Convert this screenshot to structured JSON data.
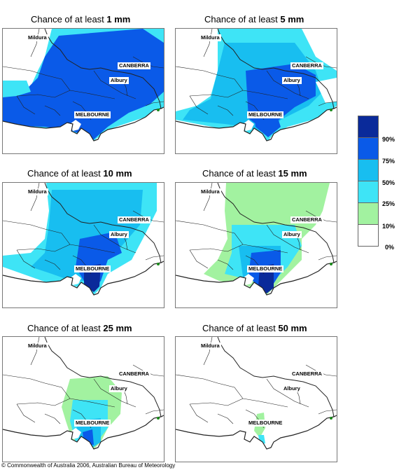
{
  "panels": [
    {
      "title_prefix": "Chance of at least ",
      "amount": "1 mm"
    },
    {
      "title_prefix": "Chance of at least ",
      "amount": "5 mm"
    },
    {
      "title_prefix": "Chance of at least ",
      "amount": "10 mm"
    },
    {
      "title_prefix": "Chance of at least ",
      "amount": "15 mm"
    },
    {
      "title_prefix": "Chance of at least ",
      "amount": "25 mm"
    },
    {
      "title_prefix": "Chance of at least ",
      "amount": "50 mm"
    }
  ],
  "places": {
    "mildura": "Mildura",
    "canberra": "CANBERRA",
    "albury": "Albury",
    "melbourne": "MELBOURNE"
  },
  "legend": {
    "labels": [
      "90%",
      "75%",
      "50%",
      "25%",
      "10%",
      "0%"
    ],
    "colors": [
      "#0a2a9a",
      "#0a5ae8",
      "#18bef0",
      "#3ee4f6",
      "#a2f2a0",
      "#ffffff"
    ]
  },
  "copyright": "© Commonwealth of Australia 2006, Australian Bureau of Meteorology"
}
